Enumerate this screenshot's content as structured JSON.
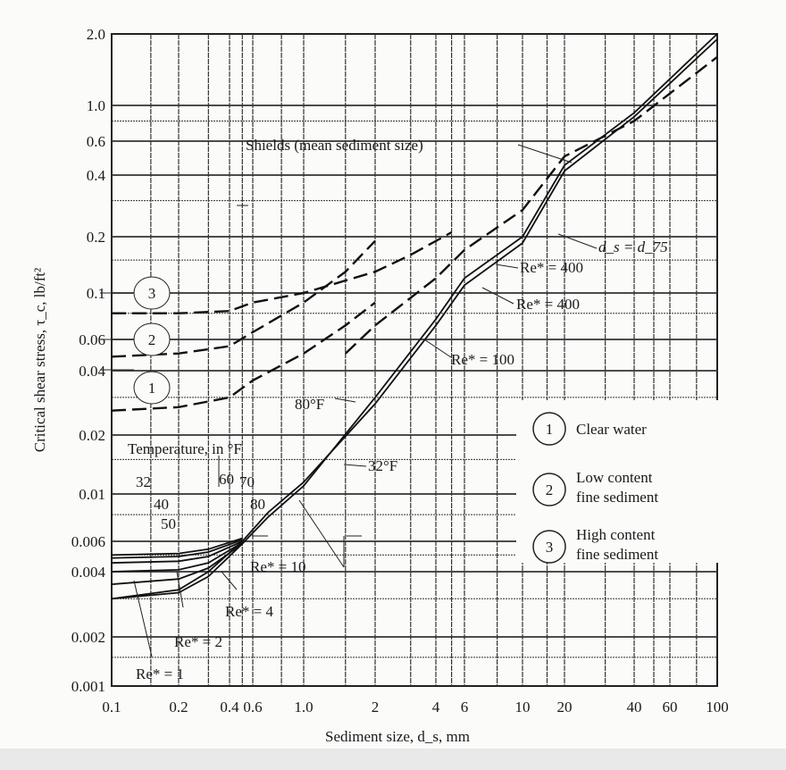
{
  "chart_data": {
    "type": "line",
    "xlabel": "Sediment size, d_s, mm",
    "ylabel": "Critical shear stress, τ_c, lb/ft²",
    "xscale": "log",
    "yscale": "log",
    "xlim": [
      0.1,
      100
    ],
    "ylim": [
      0.001,
      2.0
    ],
    "grid": true,
    "x_ticks": [
      "0.1",
      "0.2",
      "0.4",
      "0.6",
      "1.0",
      "2",
      "4",
      "6",
      "10",
      "20",
      "40",
      "60",
      "100"
    ],
    "y_ticks": [
      "2.0",
      "1.0",
      "0.6",
      "0.4",
      "0.2",
      "0.1",
      "0.06",
      "0.04",
      "0.02",
      "0.01",
      "0.006",
      "0.004",
      "0.002",
      "0.001"
    ],
    "series": [
      {
        "name": "Shields (mean sediment size)",
        "style": "solid",
        "x": [
          0.1,
          0.2,
          0.3,
          0.5,
          0.7,
          1,
          2,
          4,
          6,
          10,
          20,
          40,
          100
        ],
        "y": [
          0.003,
          0.0032,
          0.0038,
          0.0058,
          0.0078,
          0.011,
          0.03,
          0.075,
          0.12,
          0.2,
          0.45,
          0.9,
          2.0
        ]
      },
      {
        "name": "32°F",
        "style": "solid",
        "x": [
          0.1,
          0.2,
          0.3,
          0.5,
          0.7,
          1,
          2,
          4,
          6,
          10,
          20,
          40,
          100
        ],
        "y": [
          0.003,
          0.0033,
          0.004,
          0.006,
          0.0082,
          0.0115,
          0.028,
          0.07,
          0.11,
          0.185,
          0.42,
          0.85,
          1.9
        ]
      },
      {
        "name": "d_s = d_75",
        "style": "dashed",
        "x": [
          1.5,
          2,
          4,
          6,
          10,
          20,
          40,
          100
        ],
        "y": [
          0.05,
          0.07,
          0.12,
          0.17,
          0.27,
          0.5,
          0.8,
          1.6
        ]
      },
      {
        "name": "1",
        "style": "dashed",
        "x": [
          0.1,
          0.2,
          0.4,
          0.6,
          1,
          1.5,
          2
        ],
        "y": [
          0.026,
          0.027,
          0.03,
          0.036,
          0.05,
          0.07,
          0.09
        ]
      },
      {
        "name": "2",
        "style": "dashed",
        "x": [
          0.1,
          0.2,
          0.4,
          0.6,
          1,
          1.5,
          2
        ],
        "y": [
          0.048,
          0.05,
          0.055,
          0.065,
          0.09,
          0.13,
          0.19
        ]
      },
      {
        "name": "3",
        "style": "dashed",
        "x": [
          0.1,
          0.2,
          0.4,
          0.6,
          1,
          2,
          3,
          5
        ],
        "y": [
          0.08,
          0.08,
          0.082,
          0.09,
          0.1,
          0.13,
          0.16,
          0.21
        ]
      },
      {
        "name": "40",
        "style": "solid",
        "x": [
          0.1,
          0.2,
          0.3,
          0.5
        ],
        "y": [
          0.0035,
          0.0037,
          0.0042,
          0.0058
        ]
      },
      {
        "name": "50",
        "style": "solid",
        "x": [
          0.1,
          0.2,
          0.3,
          0.5
        ],
        "y": [
          0.004,
          0.0041,
          0.0045,
          0.0059
        ]
      },
      {
        "name": "60",
        "style": "solid",
        "x": [
          0.1,
          0.2,
          0.3,
          0.5
        ],
        "y": [
          0.0045,
          0.0046,
          0.0049,
          0.006
        ]
      },
      {
        "name": "70",
        "style": "solid",
        "x": [
          0.1,
          0.2,
          0.3,
          0.5
        ],
        "y": [
          0.0048,
          0.0049,
          0.0052,
          0.0061
        ]
      },
      {
        "name": "80",
        "style": "solid",
        "x": [
          0.1,
          0.2,
          0.3,
          0.5
        ],
        "y": [
          0.005,
          0.0051,
          0.0054,
          0.0062
        ]
      }
    ],
    "annotations": {
      "shields": "Shields (mean sediment size)",
      "d75": "d_s = d_75",
      "re400a": "Re* = 400",
      "re400b": "Re* = 400",
      "re100": "Re* = 100",
      "f80": "80°F",
      "f32": "32°F",
      "temp_title": "Temperature, in °F",
      "t32": "32",
      "t40": "40",
      "t50": "50",
      "t60": "60",
      "t70": "70",
      "t80": "80",
      "re10": "Re* = 10",
      "re4": "Re* = 4",
      "re2": "Re* = 2",
      "re1": "Re* = 1",
      "c1": "1",
      "c2": "2",
      "c3": "3"
    },
    "legend": {
      "placement": "right",
      "items": [
        {
          "num": "1",
          "lines": [
            "Clear water"
          ]
        },
        {
          "num": "2",
          "lines": [
            "Low content",
            "fine sediment"
          ]
        },
        {
          "num": "3",
          "lines": [
            "High content",
            "fine sediment"
          ]
        }
      ]
    }
  }
}
